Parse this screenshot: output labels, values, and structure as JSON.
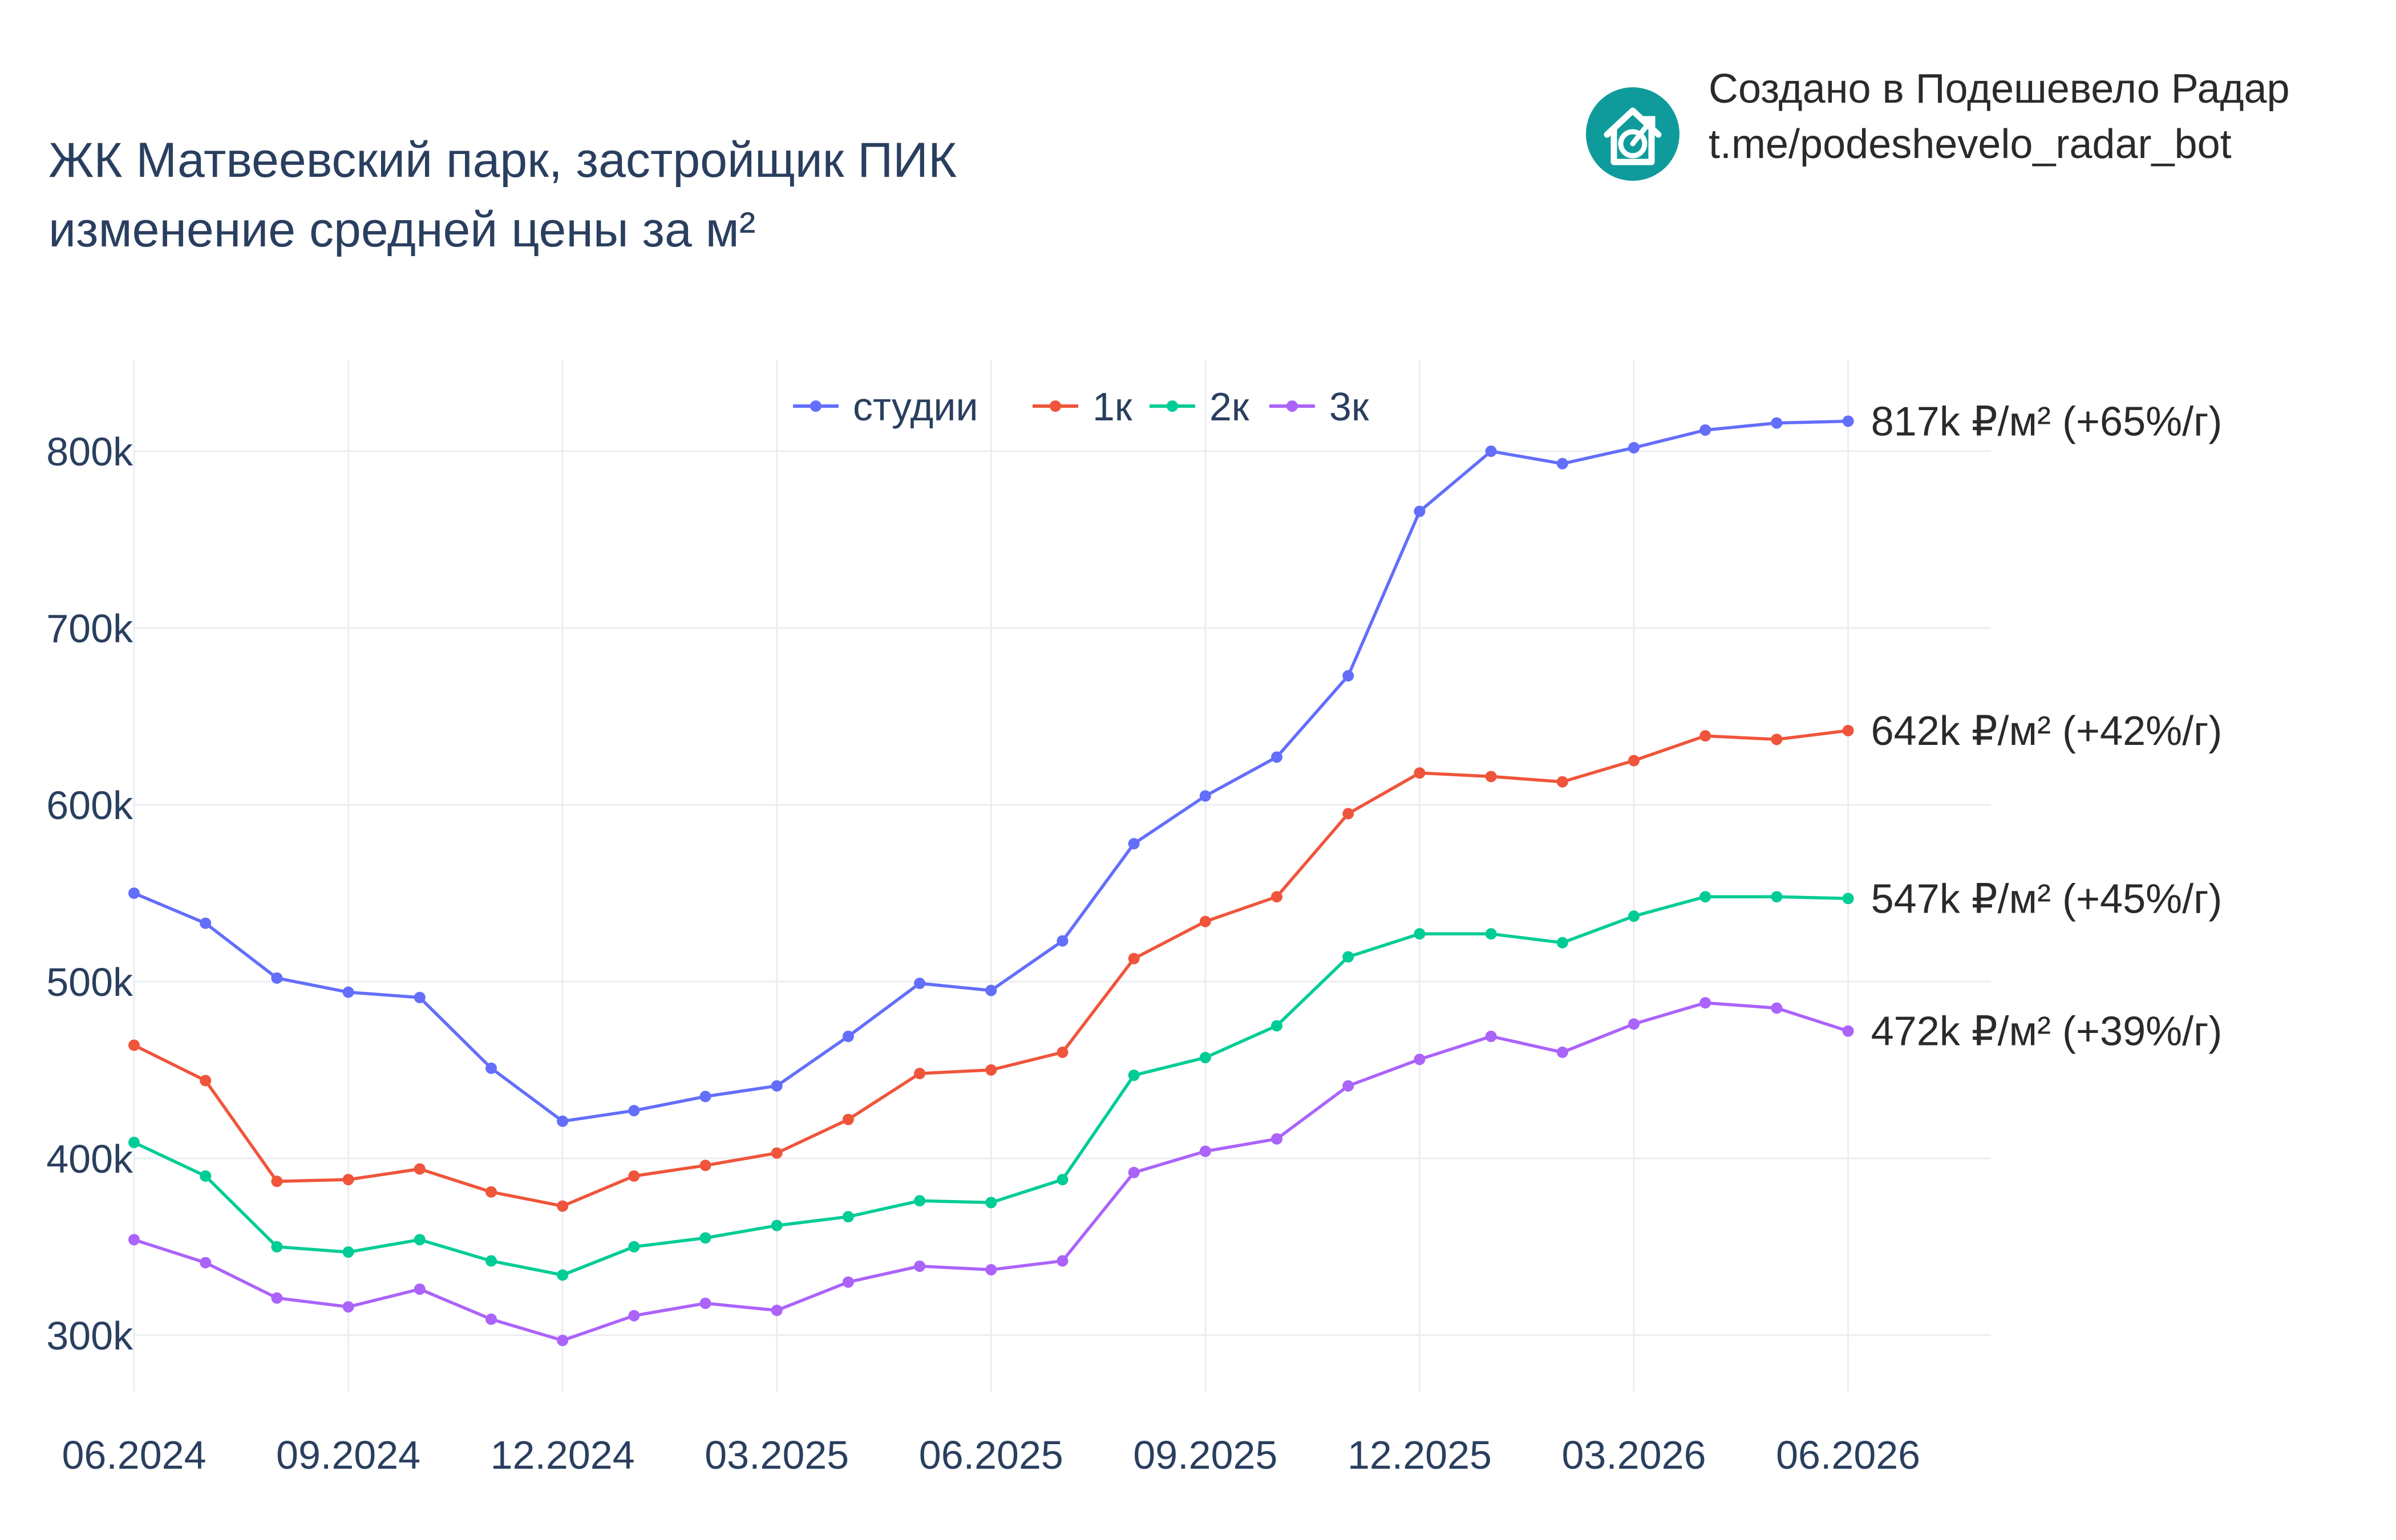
{
  "title_line1": "ЖК Матвеевский парк, застройщик ПИК",
  "title_line2": "изменение средней цены за м²",
  "credit_line1": "Создано в Подешевело Радар",
  "credit_line2": "t.me/podeshevelo_radar_bot",
  "logo_icon": "house-with-arrow-icon",
  "logo_color": "#0f9b9b",
  "chart_data": {
    "type": "line",
    "grid": true,
    "legend_position": "top",
    "ylim": [
      268000,
      852000
    ],
    "y_ticks": [
      300000,
      400000,
      500000,
      600000,
      700000,
      800000
    ],
    "y_tick_labels": [
      "300k",
      "400k",
      "500k",
      "600k",
      "700k",
      "800k"
    ],
    "x_start": "2024-06",
    "x_range": [
      "2024-06",
      "2026-08"
    ],
    "x_tick_labels": [
      "06.2024",
      "09.2024",
      "12.2024",
      "03.2025",
      "06.2025",
      "09.2025",
      "12.2025",
      "03.2026",
      "06.2026"
    ],
    "series": [
      {
        "name": "студии",
        "color": "#636efa",
        "values": [
          550000,
          533000,
          502000,
          494000,
          491000,
          451000,
          421000,
          427000,
          435000,
          441000,
          469000,
          499000,
          495000,
          523000,
          578000,
          605000,
          627000,
          673000,
          766000,
          800000,
          793000,
          802000,
          812000,
          816000,
          817000
        ],
        "end_label": "817k ₽/м² (+65%/г)"
      },
      {
        "name": "1к",
        "color": "#ef553b",
        "values": [
          464000,
          444000,
          387000,
          388000,
          394000,
          381000,
          373000,
          390000,
          396000,
          403000,
          422000,
          448000,
          450000,
          460000,
          513000,
          534000,
          548000,
          595000,
          618000,
          616000,
          613000,
          625000,
          639000,
          637000,
          642000
        ],
        "end_label": "642k ₽/м² (+42%/г)"
      },
      {
        "name": "2к",
        "color": "#00cc96",
        "values": [
          409000,
          390000,
          350000,
          347000,
          354000,
          342000,
          334000,
          350000,
          355000,
          362000,
          367000,
          376000,
          375000,
          388000,
          447000,
          457000,
          475000,
          514000,
          527000,
          527000,
          522000,
          537000,
          548000,
          548000,
          547000
        ],
        "end_label": "547k ₽/м² (+45%/г)"
      },
      {
        "name": "3к",
        "color": "#ab63fa",
        "values": [
          354000,
          341000,
          321000,
          316000,
          326000,
          309000,
          297000,
          311000,
          318000,
          314000,
          330000,
          339000,
          337000,
          342000,
          392000,
          404000,
          411000,
          441000,
          456000,
          469000,
          460000,
          476000,
          488000,
          485000,
          472000
        ],
        "end_label": "472k ₽/м² (+39%/г)"
      }
    ]
  }
}
